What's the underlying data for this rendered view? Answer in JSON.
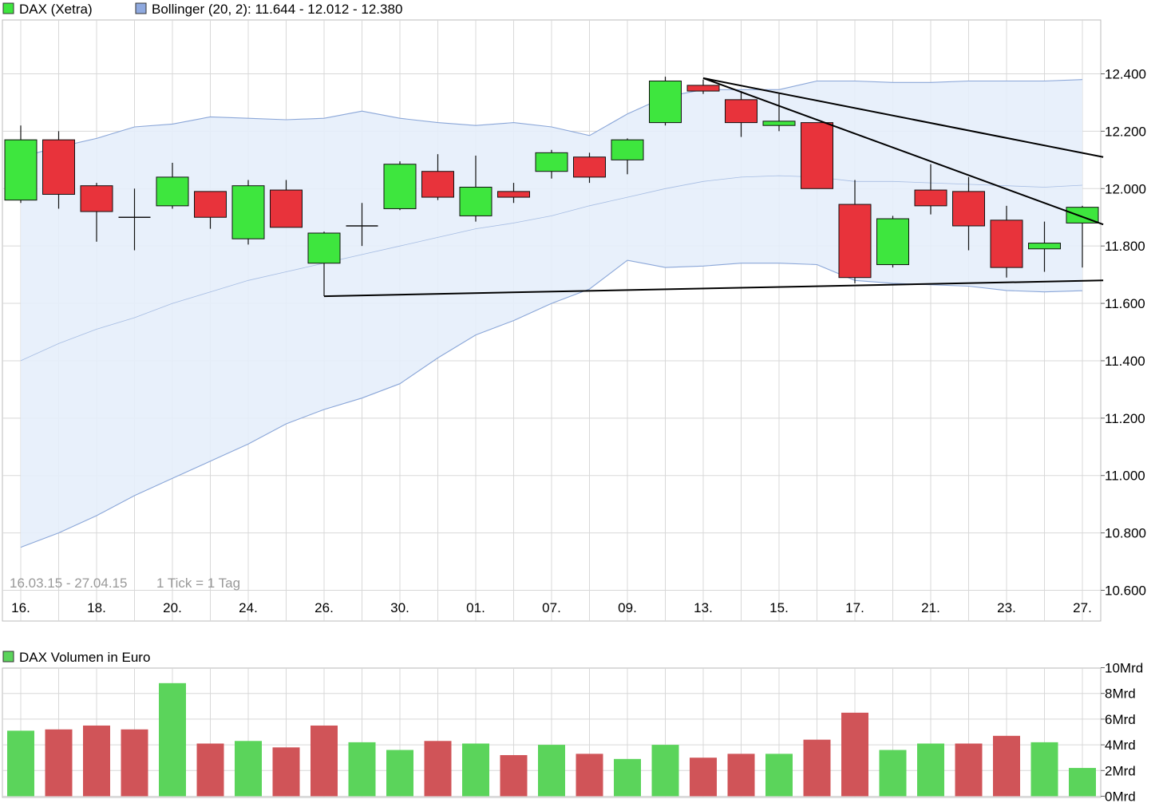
{
  "price_legend": {
    "instrument": "DAX (Xetra)",
    "bollinger": "Bollinger (20, 2): 11.644 - 12.012 - 12.380"
  },
  "period_info": "16.03.15 - 27.04.15",
  "tick_info": "1 Tick = 1 Tag",
  "volume_legend": "DAX Volumen in Euro",
  "colors": {
    "up": "#3ee63e",
    "down": "#e8333b",
    "band_fill": "#e6eefb",
    "band_line": "#8aa6d8",
    "grid": "#d8d8d8",
    "vol_up": "#5bd45b",
    "vol_down": "#d05458",
    "bollinger_swatch": "#8fa9df"
  },
  "chart_data": [
    {
      "type": "candlestick",
      "title": "DAX (Xetra)",
      "ylim": [
        10550,
        12550
      ],
      "y_ticks": [
        "10.600",
        "10.800",
        "11.000",
        "11.200",
        "11.400",
        "11.600",
        "11.800",
        "12.000",
        "12.200",
        "12.400"
      ],
      "y_tick_values": [
        10600,
        10800,
        11000,
        11200,
        11400,
        11600,
        11800,
        12000,
        12200,
        12400
      ],
      "x_tick_labels": [
        "16.",
        "18.",
        "20.",
        "24.",
        "26.",
        "30.",
        "01.",
        "07.",
        "09.",
        "13.",
        "15.",
        "17.",
        "21.",
        "23.",
        "27."
      ],
      "x_tick_index": [
        0,
        2,
        4,
        6,
        8,
        10,
        12,
        14,
        16,
        18,
        20,
        22,
        24,
        26,
        28
      ],
      "candles": [
        {
          "date": "16.03.",
          "open": 11960,
          "high": 12220,
          "low": 11950,
          "close": 12170
        },
        {
          "date": "17.03.",
          "open": 12170,
          "high": 12200,
          "low": 11930,
          "close": 11980
        },
        {
          "date": "18.03.",
          "open": 12010,
          "high": 12020,
          "low": 11815,
          "close": 11920
        },
        {
          "date": "19.03.",
          "open": 11900,
          "high": 12000,
          "low": 11785,
          "close": 11900
        },
        {
          "date": "20.03.",
          "open": 11940,
          "high": 12090,
          "low": 11930,
          "close": 12040
        },
        {
          "date": "23.03.",
          "open": 11990,
          "high": 11990,
          "low": 11860,
          "close": 11900
        },
        {
          "date": "24.03.",
          "open": 11825,
          "high": 12030,
          "low": 11805,
          "close": 12010
        },
        {
          "date": "25.03.",
          "open": 11995,
          "high": 12030,
          "low": 11865,
          "close": 11865
        },
        {
          "date": "26.03.",
          "open": 11740,
          "high": 11850,
          "low": 11625,
          "close": 11845
        },
        {
          "date": "27.03.",
          "open": 11870,
          "high": 11950,
          "low": 11800,
          "close": 11870
        },
        {
          "date": "30.03.",
          "open": 11930,
          "high": 12095,
          "low": 11925,
          "close": 12085
        },
        {
          "date": "31.03.",
          "open": 12060,
          "high": 12120,
          "low": 11960,
          "close": 11970
        },
        {
          "date": "01.04.",
          "open": 11905,
          "high": 12115,
          "low": 11885,
          "close": 12005
        },
        {
          "date": "02.04.",
          "open": 11990,
          "high": 12020,
          "low": 11950,
          "close": 11970
        },
        {
          "date": "07.04.",
          "open": 12060,
          "high": 12135,
          "low": 12035,
          "close": 12125
        },
        {
          "date": "08.04.",
          "open": 12110,
          "high": 12125,
          "low": 12020,
          "close": 12040
        },
        {
          "date": "09.04.",
          "open": 12100,
          "high": 12175,
          "low": 12050,
          "close": 12170
        },
        {
          "date": "10.04.",
          "open": 12230,
          "high": 12390,
          "low": 12220,
          "close": 12375
        },
        {
          "date": "13.04.",
          "open": 12360,
          "high": 12380,
          "low": 12330,
          "close": 12340
        },
        {
          "date": "14.04.",
          "open": 12310,
          "high": 12340,
          "low": 12180,
          "close": 12230
        },
        {
          "date": "15.04.",
          "open": 12220,
          "high": 12330,
          "low": 12200,
          "close": 12235
        },
        {
          "date": "16.04.",
          "open": 12230,
          "high": 12230,
          "low": 12000,
          "close": 12000
        },
        {
          "date": "17.04.",
          "open": 11945,
          "high": 12030,
          "low": 11670,
          "close": 11690
        },
        {
          "date": "20.04.",
          "open": 11735,
          "high": 11905,
          "low": 11725,
          "close": 11895
        },
        {
          "date": "21.04.",
          "open": 11995,
          "high": 12085,
          "low": 11910,
          "close": 11940
        },
        {
          "date": "22.04.",
          "open": 11990,
          "high": 12040,
          "low": 11785,
          "close": 11870
        },
        {
          "date": "23.04.",
          "open": 11890,
          "high": 11940,
          "low": 11690,
          "close": 11725
        },
        {
          "date": "24.04.",
          "open": 11790,
          "high": 11885,
          "low": 11710,
          "close": 11810
        },
        {
          "date": "27.04.",
          "open": 11880,
          "high": 11940,
          "low": 11725,
          "close": 11935
        }
      ],
      "bollinger": {
        "upper": [
          12110,
          12145,
          12175,
          12215,
          12225,
          12250,
          12245,
          12240,
          12245,
          12270,
          12245,
          12230,
          12220,
          12230,
          12215,
          12185,
          12260,
          12320,
          12345,
          12345,
          12345,
          12375,
          12375,
          12370,
          12370,
          12375,
          12375,
          12375,
          12380
        ],
        "middle": [
          11400,
          11460,
          11510,
          11550,
          11600,
          11640,
          11680,
          11710,
          11740,
          11770,
          11800,
          11830,
          11860,
          11880,
          11905,
          11940,
          11970,
          12000,
          12025,
          12040,
          12045,
          12040,
          12025,
          12025,
          12020,
          12015,
          12010,
          12005,
          12012
        ],
        "lower": [
          10750,
          10800,
          10860,
          10930,
          10990,
          11050,
          11110,
          11180,
          11230,
          11270,
          11320,
          11410,
          11490,
          11540,
          11600,
          11650,
          11750,
          11725,
          11730,
          11740,
          11740,
          11735,
          11680,
          11670,
          11665,
          11660,
          11645,
          11640,
          11644
        ]
      },
      "trend_lines": [
        {
          "from": {
            "index": 8,
            "value": 11625
          },
          "to": {
            "index": 28.55,
            "value": 11680
          }
        },
        {
          "from": {
            "index": 18,
            "value": 12385
          },
          "to": {
            "index": 28.55,
            "value": 12110
          }
        },
        {
          "from": {
            "index": 18,
            "value": 12385
          },
          "to": {
            "index": 28.55,
            "value": 11875
          }
        }
      ]
    },
    {
      "type": "bar",
      "title": "DAX Volumen in Euro",
      "ylim": [
        0,
        10
      ],
      "y_ticks": [
        "0Mrd",
        "2Mrd",
        "4Mrd",
        "6Mrd",
        "8Mrd",
        "10Mrd"
      ],
      "y_tick_values": [
        0,
        2,
        4,
        6,
        8,
        10
      ],
      "unit": "Mrd",
      "values": [
        5.1,
        5.2,
        5.5,
        5.2,
        8.8,
        4.1,
        4.3,
        3.8,
        5.5,
        4.2,
        3.6,
        4.3,
        4.1,
        3.2,
        4.0,
        3.3,
        2.9,
        4.0,
        3.0,
        3.3,
        3.3,
        4.4,
        6.5,
        3.6,
        4.1,
        4.1,
        4.7,
        4.2,
        2.2
      ],
      "colors": [
        "up",
        "down",
        "down",
        "down",
        "up",
        "down",
        "up",
        "down",
        "down",
        "up",
        "up",
        "down",
        "up",
        "down",
        "up",
        "down",
        "up",
        "up",
        "down",
        "down",
        "up",
        "down",
        "down",
        "up",
        "up",
        "down",
        "down",
        "up",
        "up"
      ]
    }
  ]
}
